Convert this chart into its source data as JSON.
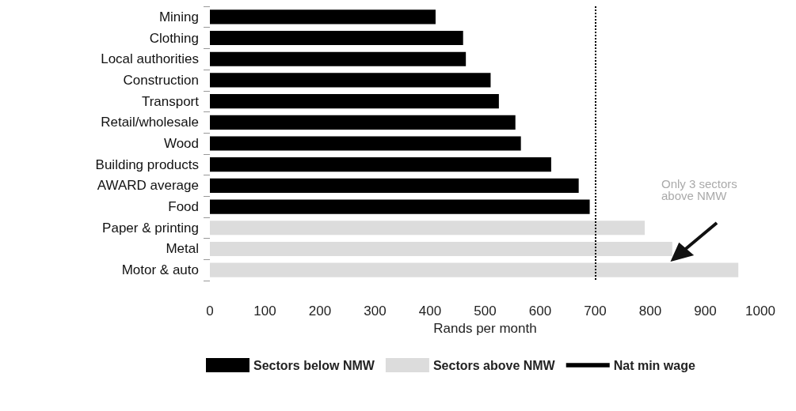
{
  "chart_data": {
    "type": "bar",
    "orientation": "horizontal",
    "xlabel": "Rands per month",
    "categories": [
      "Mining",
      "Clothing",
      "Local authorities",
      "Construction",
      "Transport",
      "Retail/wholesale",
      "Wood",
      "Building products",
      "AWARD average",
      "Food",
      "Paper & printing",
      "Metal",
      "Motor & auto"
    ],
    "series": [
      {
        "name": "Sectors below NMW",
        "color": "#000000",
        "values": [
          410,
          460,
          465,
          510,
          525,
          555,
          565,
          620,
          670,
          690,
          null,
          null,
          null
        ]
      },
      {
        "name": "Sectors above NMW",
        "color": "#dcdcdc",
        "values": [
          null,
          null,
          null,
          null,
          null,
          null,
          null,
          null,
          null,
          null,
          790,
          840,
          960
        ]
      }
    ],
    "xlim": [
      0,
      1000
    ],
    "xticks": [
      0,
      100,
      200,
      300,
      400,
      500,
      600,
      700,
      800,
      900,
      1000
    ],
    "ref_lines": [
      {
        "axis": "x",
        "value": 700,
        "label": "Nat min wage",
        "line_style": "dotted",
        "color": "#000000"
      }
    ],
    "annotations": [
      "Only 3 sectors above NMW"
    ],
    "legend": "bottom",
    "grid": false
  }
}
